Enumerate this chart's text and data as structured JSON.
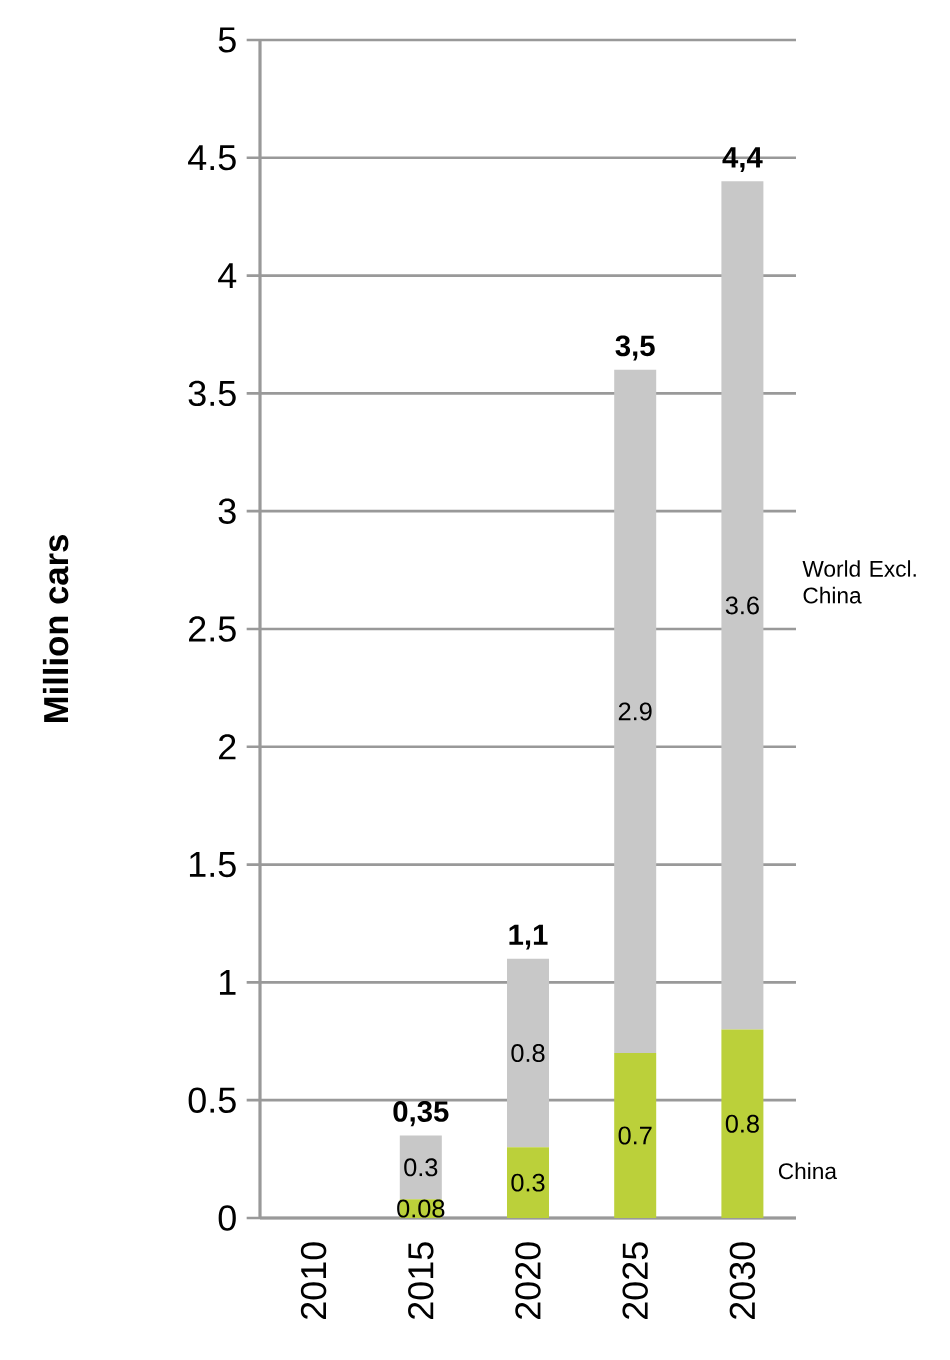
{
  "chart_data": {
    "type": "bar",
    "stacked": true,
    "ylabel": "Million cars",
    "categories": [
      "2010",
      "2015",
      "2020",
      "2025",
      "2030"
    ],
    "series": [
      {
        "name": "China",
        "color": "#bbd03a",
        "values": [
          null,
          0.08,
          0.3,
          0.7,
          0.8
        ],
        "value_labels": [
          null,
          "0.08",
          "0.3",
          "0.7",
          "0.8"
        ]
      },
      {
        "name": "World Excl. China",
        "color": "#c8c8c8",
        "values": [
          null,
          0.27,
          0.8,
          2.9,
          3.6
        ],
        "value_labels": [
          null,
          "0.3",
          "0.8",
          "2.9",
          "3.6"
        ]
      }
    ],
    "totals": [
      null,
      "0,35",
      "1,1",
      "3,5",
      "4,4"
    ],
    "grid": "y",
    "ylim": [
      0,
      5
    ],
    "yticks": [
      0,
      0.5,
      1,
      1.5,
      2,
      2.5,
      3,
      3.5,
      4,
      4.5,
      5
    ]
  }
}
